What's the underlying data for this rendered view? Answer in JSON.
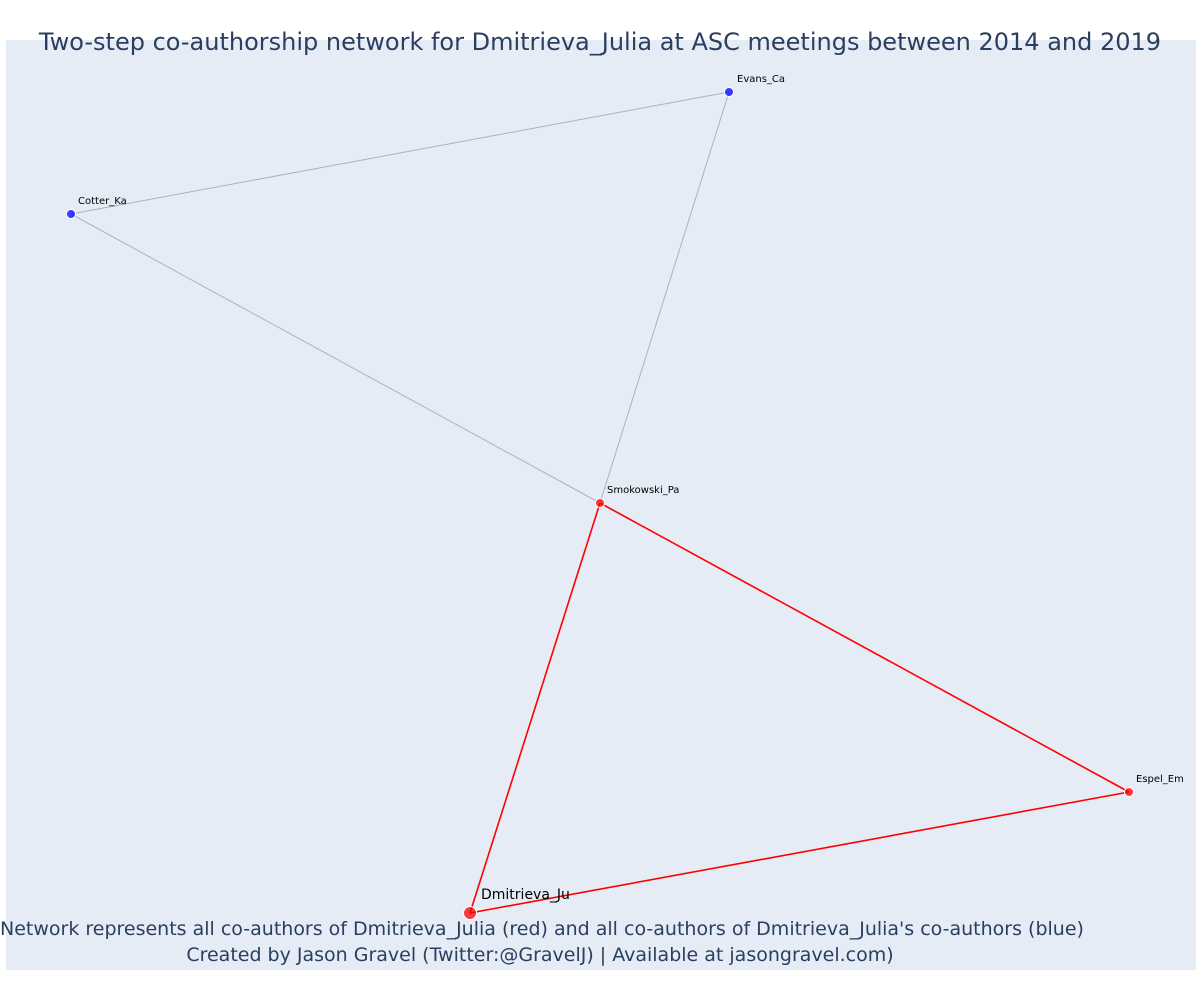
{
  "title": "Two-step co-authorship network for Dmitrieva_Julia at ASC meetings between 2014 and 2019",
  "caption": {
    "line1": "Network represents all co-authors of Dmitrieva_Julia (red) and all co-authors of Dmitrieva_Julia's co-authors (blue)",
    "line2": "Created by Jason Gravel (Twitter:@GravelJ) | Available at jasongravel.com)"
  },
  "colors": {
    "background": "#e5ecf6",
    "first_degree": "#ff0000",
    "second_degree": "#0000ff",
    "second_degree_edge": "#b0b0c0",
    "text": "#2a3f5f"
  },
  "nodes": [
    {
      "id": "Dmitrieva_Ju",
      "label": "Dmitrieva_Ju",
      "group": "ego"
    },
    {
      "id": "Smokowski_Pa",
      "label": "Smokowski_Pa",
      "group": "first_degree"
    },
    {
      "id": "Espel_Em",
      "label": "Espel_Em",
      "group": "first_degree"
    },
    {
      "id": "Evans_Ca",
      "label": "Evans_Ca",
      "group": "second_degree"
    },
    {
      "id": "Cotter_Ka",
      "label": "Cotter_Ka",
      "group": "second_degree"
    }
  ],
  "edges": [
    {
      "source": "Dmitrieva_Ju",
      "target": "Smokowski_Pa",
      "group": "first_degree"
    },
    {
      "source": "Dmitrieva_Ju",
      "target": "Espel_Em",
      "group": "first_degree"
    },
    {
      "source": "Smokowski_Pa",
      "target": "Espel_Em",
      "group": "first_degree"
    },
    {
      "source": "Smokowski_Pa",
      "target": "Evans_Ca",
      "group": "second_degree"
    },
    {
      "source": "Smokowski_Pa",
      "target": "Cotter_Ka",
      "group": "second_degree"
    },
    {
      "source": "Evans_Ca",
      "target": "Cotter_Ka",
      "group": "second_degree"
    }
  ]
}
